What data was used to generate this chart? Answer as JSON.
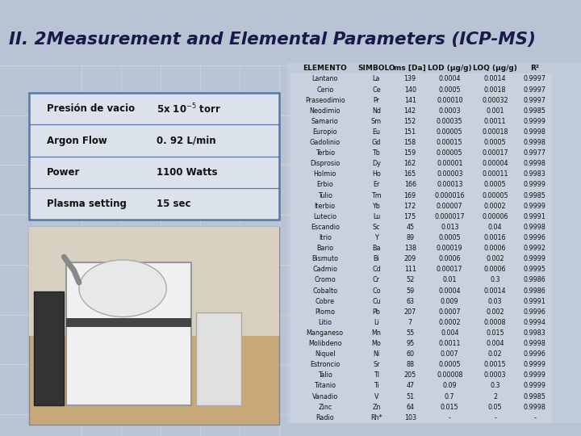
{
  "title": "II. 2Measurement and Elemental Parameters (ICP-MS)",
  "title_color": "#1a1a4a",
  "bg_color": "#b8c4d4",
  "title_strip_color": "#dde4ef",
  "params": [
    [
      "Presión de vacio",
      "5x 10⁻⁵ torr"
    ],
    [
      "Argon Flow",
      "0. 92 L/min"
    ],
    [
      "Power",
      "1100 Watts"
    ],
    [
      "Plasma setting",
      "15 sec"
    ]
  ],
  "table_headers": [
    "ELEMENTO",
    "SIMBOLO",
    "ms [Da]",
    "LOD (μg/g)",
    "LOQ (μg/g)",
    "R²"
  ],
  "table_data": [
    [
      "Lantano",
      "La",
      "139",
      "0.0004",
      "0.0014",
      "0.9997"
    ],
    [
      "Cerio",
      "Ce",
      "140",
      "0.0005",
      "0.0018",
      "0.9997"
    ],
    [
      "Praseodimio",
      "Pr",
      "141",
      "0.00010",
      "0.00032",
      "0.9997"
    ],
    [
      "Neodimio",
      "Nd",
      "142",
      "0.0003",
      "0.001",
      "0.9985"
    ],
    [
      "Samario",
      "Sm",
      "152",
      "0.00035",
      "0.0011",
      "0.9999"
    ],
    [
      "Europio",
      "Eu",
      "151",
      "0.00005",
      "0.00018",
      "0.9998"
    ],
    [
      "Gadolinio",
      "Gd",
      "158",
      "0.00015",
      "0.0005",
      "0.9998"
    ],
    [
      "Terbio",
      "Tb",
      "159",
      "0.00005",
      "0.00017",
      "0.9977"
    ],
    [
      "Disprosio",
      "Dy",
      "162",
      "0.00001",
      "0.00004",
      "0.9998"
    ],
    [
      "Holmio",
      "Ho",
      "165",
      "0.00003",
      "0.00011",
      "0.9983"
    ],
    [
      "Erbio",
      "Er",
      "166",
      "0.00013",
      "0.0005",
      "0.9999"
    ],
    [
      "Tulio",
      "Tm",
      "169",
      "0.000016",
      "0.00005",
      "0.9985"
    ],
    [
      "Iterbio",
      "Yb",
      "172",
      "0.00007",
      "0.0002",
      "0.9999"
    ],
    [
      "Lutecio",
      "Lu",
      "175",
      "0.000017",
      "0.00006",
      "0.9991"
    ],
    [
      "Escandio",
      "Sc",
      "45",
      "0.013",
      "0.04",
      "0.9998"
    ],
    [
      "Itrio",
      "Y",
      "89",
      "0.0005",
      "0.0016",
      "0.9996"
    ],
    [
      "Bario",
      "Ba",
      "138",
      "0.00019",
      "0.0006",
      "0.9992"
    ],
    [
      "Bismuto",
      "Bi",
      "209",
      "0.0006",
      "0.002",
      "0.9999"
    ],
    [
      "Cadmio",
      "Cd",
      "111",
      "0.00017",
      "0.0006",
      "0.9995"
    ],
    [
      "Cromo",
      "Cr",
      "52",
      "0.01",
      "0.3",
      "0.9986"
    ],
    [
      "Cobalto",
      "Co",
      "59",
      "0.0004",
      "0.0014",
      "0.9986"
    ],
    [
      "Cobre",
      "Cu",
      "63",
      "0.009",
      "0.03",
      "0.9991"
    ],
    [
      "Plomo",
      "Pb",
      "207",
      "0.0007",
      "0.002",
      "0.9996"
    ],
    [
      "Litio",
      "Li",
      "7",
      "0.0002",
      "0.0008",
      "0.9994"
    ],
    [
      "Manganeso",
      "Mn",
      "55",
      "0.004",
      "0.015",
      "0.9983"
    ],
    [
      "Molibdeno",
      "Mo",
      "95",
      "0.0011",
      "0.004",
      "0.9998"
    ],
    [
      "Niquel",
      "Ni",
      "60",
      "0.007",
      "0.02",
      "0.9996"
    ],
    [
      "Estroncio",
      "Sr",
      "88",
      "0.0005",
      "0.0015",
      "0.9999"
    ],
    [
      "Talio",
      "Tl",
      "205",
      "0.00008",
      "0.0003",
      "0.9999"
    ],
    [
      "Titanio",
      "Ti",
      "47",
      "0.09",
      "0.3",
      "0.9999"
    ],
    [
      "Vanadio",
      "V",
      "51",
      "0.7",
      "2",
      "0.9985"
    ],
    [
      "Zinc",
      "Zn",
      "64",
      "0.015",
      "0.05",
      "0.9998"
    ],
    [
      "Radio",
      "Rh*",
      "103",
      "-",
      "-",
      "-"
    ]
  ],
  "param_box_bg": "#dce2ec",
  "param_box_border": "#5577aa",
  "font_color": "#111111",
  "table_text_color": "#111111",
  "header_font_size": 6.5,
  "row_font_size": 5.8
}
